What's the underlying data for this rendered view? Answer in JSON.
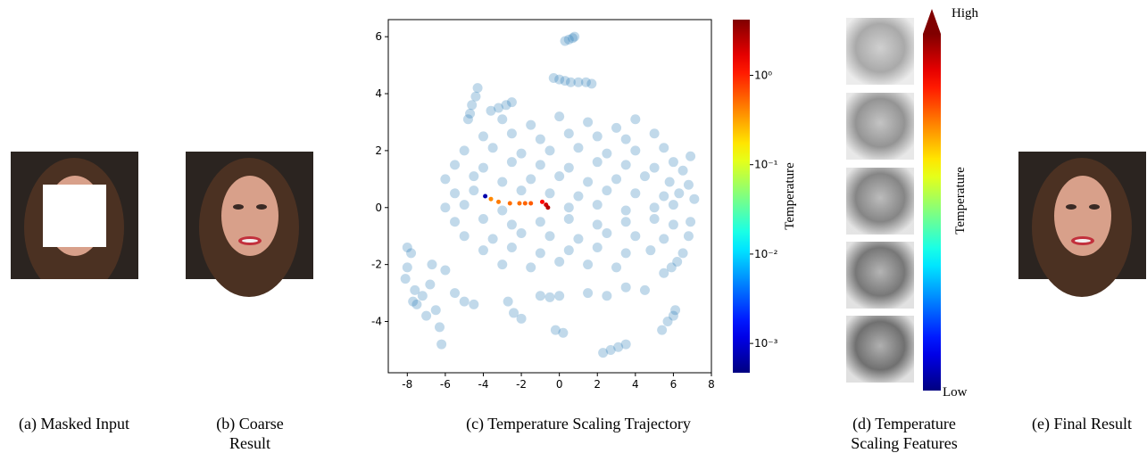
{
  "figure": {
    "panels": [
      {
        "caption": [
          "(a) Masked Input"
        ]
      },
      {
        "caption": [
          "(b) Coarse",
          "Result"
        ]
      },
      {
        "caption": [
          "(c) Temperature Scaling Trajectory"
        ]
      },
      {
        "caption": [
          "(d) Temperature",
          "Scaling Features"
        ]
      },
      {
        "caption": [
          "(e) Final Result"
        ]
      }
    ],
    "feature_colorbar": {
      "label": "Temperature",
      "high": "High",
      "low": "Low",
      "colormap": "jet"
    }
  },
  "chart_data": {
    "type": "scatter",
    "xlim": [
      -9,
      8
    ],
    "ylim": [
      -5.8,
      6.6
    ],
    "xticks": [
      -8,
      -6,
      -4,
      -2,
      0,
      2,
      4,
      6,
      8
    ],
    "yticks": [
      -4,
      -2,
      0,
      2,
      4,
      6
    ],
    "points": {
      "color": "#1f77b4",
      "alpha": 0.28,
      "x": [
        -3,
        -1.5,
        0,
        1.5,
        3,
        4,
        -4,
        -2.5,
        -1,
        0.5,
        2,
        3.5,
        5,
        -5,
        -3.5,
        -2,
        -0.5,
        1,
        2.5,
        4,
        5.5,
        -5.5,
        -4,
        -2.5,
        -1,
        0.5,
        2,
        3.5,
        5,
        6,
        -6,
        -4.5,
        -3,
        -1.5,
        0,
        1.5,
        3,
        4.5,
        5.8,
        -5.5,
        -4.5,
        -2,
        -0.5,
        1,
        2.5,
        4,
        5.5,
        6.3,
        -6,
        -5,
        -3,
        0.5,
        2,
        3.5,
        5,
        6,
        -5.5,
        -4,
        -2.5,
        -1,
        0.5,
        2,
        3.5,
        5,
        6,
        -5,
        -3.5,
        -2,
        -0.5,
        1,
        2.5,
        4,
        5.5,
        -4,
        -2.5,
        -1,
        0.5,
        2,
        3.5,
        4.8,
        -3,
        -1.5,
        0,
        1.5,
        3,
        0.3,
        0.5,
        0.7,
        0.8,
        -0.3,
        0,
        0.3,
        0.6,
        1,
        1.4,
        1.7,
        -4.8,
        -4.7,
        -4.6,
        -4.4,
        -4.3,
        -3.6,
        -3.2,
        -2.8,
        -2.5,
        -8,
        -7.8,
        -8.1,
        -7.6,
        -7.2,
        -7.5,
        -6.8,
        -6.5,
        -6.3,
        -6.2,
        -7,
        -7.7,
        -6,
        -6.7,
        -5.5,
        -5,
        -4.5,
        -8,
        -0.2,
        0.2,
        2.3,
        2.7,
        3.1,
        3.5,
        5.4,
        5.7,
        6,
        6.1,
        -1,
        -0.5,
        0,
        -2.7,
        -2.4,
        -2,
        5.5,
        5.9,
        6.2,
        6.5,
        6.8,
        6.9,
        7.1,
        6.8,
        6.5,
        6.9,
        1.5,
        2.5,
        3.5,
        4.5
      ],
      "y": [
        3.1,
        2.9,
        3.2,
        3.0,
        2.8,
        3.1,
        2.5,
        2.6,
        2.4,
        2.6,
        2.5,
        2.4,
        2.6,
        2.0,
        2.1,
        1.9,
        2.0,
        2.1,
        1.9,
        2.0,
        2.1,
        1.5,
        1.4,
        1.6,
        1.5,
        1.4,
        1.6,
        1.5,
        1.4,
        1.6,
        1.0,
        1.1,
        0.9,
        1.0,
        1.1,
        0.9,
        1.0,
        1.1,
        0.9,
        0.5,
        0.6,
        0.6,
        0.5,
        0.4,
        0.6,
        0.5,
        0.4,
        0.5,
        0.0,
        0.1,
        -0.1,
        0.0,
        0.1,
        -0.1,
        0.0,
        0.1,
        -0.5,
        -0.4,
        -0.6,
        -0.5,
        -0.4,
        -0.6,
        -0.5,
        -0.4,
        -0.6,
        -1.0,
        -1.1,
        -0.9,
        -1.0,
        -1.1,
        -0.9,
        -1.0,
        -1.1,
        -1.5,
        -1.4,
        -1.6,
        -1.5,
        -1.4,
        -1.6,
        -1.5,
        -2.0,
        -2.1,
        -1.9,
        -2.0,
        -2.1,
        5.85,
        5.9,
        5.95,
        6.0,
        4.55,
        4.5,
        4.45,
        4.4,
        4.4,
        4.4,
        4.35,
        3.1,
        3.3,
        3.6,
        3.9,
        4.2,
        3.4,
        3.5,
        3.6,
        3.7,
        -2.1,
        -1.6,
        -2.5,
        -2.9,
        -3.1,
        -3.4,
        -2.7,
        -3.6,
        -4.2,
        -4.8,
        -3.8,
        -3.3,
        -2.2,
        -2,
        -3,
        -3.3,
        -3.4,
        -1.4,
        -4.3,
        -4.4,
        -5.1,
        -5,
        -4.9,
        -4.8,
        -4.3,
        -4,
        -3.8,
        -3.6,
        -3.1,
        -3.15,
        -3.1,
        -3.3,
        -3.7,
        -3.9,
        -2.3,
        -2.1,
        -1.9,
        -1.6,
        -1,
        -0.5,
        0.3,
        0.8,
        1.3,
        1.8,
        -3,
        -3.1,
        -2.8,
        -2.9
      ]
    },
    "trajectory": {
      "x": [
        -3.9,
        -3.6,
        -3.2,
        -2.6,
        -2.1,
        -1.8,
        -1.5,
        -0.9,
        -0.7,
        -0.6
      ],
      "y": [
        0.4,
        0.3,
        0.2,
        0.15,
        0.15,
        0.15,
        0.15,
        0.2,
        0.1,
        0.0
      ],
      "temperature": [
        0.0007,
        0.4,
        0.45,
        0.5,
        0.5,
        0.55,
        0.6,
        1.3,
        2.0,
        2.6
      ]
    },
    "colorbar": {
      "label": "Temperature",
      "log": true,
      "colormap": "jet",
      "lim": [
        0.00047,
        4.2
      ],
      "ticks": [
        {
          "value": 1,
          "label": "10⁰"
        },
        {
          "value": 0.1,
          "label": "10⁻¹"
        },
        {
          "value": 0.01,
          "label": "10⁻²"
        },
        {
          "value": 0.001,
          "label": "10⁻³"
        }
      ]
    }
  }
}
